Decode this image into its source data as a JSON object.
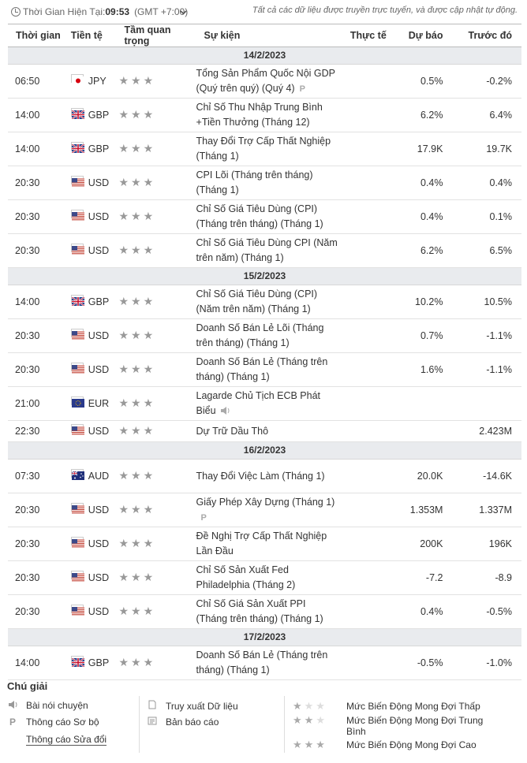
{
  "header": {
    "time_label": "Thời Gian Hiện Tại:",
    "time_value": "09:53",
    "timezone": "(GMT +7:00)",
    "notice": "Tất cả các dữ liệu được truyền trực tuyến, và được cập nhật tự động."
  },
  "columns": {
    "time": "Thời gian",
    "currency": "Tiền tệ",
    "importance": "Tầm quan trọng",
    "event": "Sự kiện",
    "actual": "Thực tế",
    "forecast": "Dự báo",
    "previous": "Trước đó"
  },
  "days": [
    {
      "date": "14/2/2023",
      "rows": [
        {
          "time": "06:50",
          "currency": "JPY",
          "flag": "jp",
          "event": "Tổng Sản Phẩm Quốc Nội GDP (Quý trên quý) (Quý 4)",
          "extra": "P",
          "actual": "",
          "forecast": "0.5%",
          "previous": "-0.2%"
        },
        {
          "time": "14:00",
          "currency": "GBP",
          "flag": "gb",
          "event": "Chỉ Số Thu Nhập Trung Bình +Tiền Thưởng (Tháng 12)",
          "extra": "",
          "actual": "",
          "forecast": "6.2%",
          "previous": "6.4%"
        },
        {
          "time": "14:00",
          "currency": "GBP",
          "flag": "gb",
          "event": "Thay Đổi Trợ Cấp Thất Nghiệp (Tháng 1)",
          "extra": "",
          "actual": "",
          "forecast": "17.9K",
          "previous": "19.7K"
        },
        {
          "time": "20:30",
          "currency": "USD",
          "flag": "us",
          "event": "CPI Lõi (Tháng trên tháng) (Tháng 1)",
          "extra": "",
          "actual": "",
          "forecast": "0.4%",
          "previous": "0.4%"
        },
        {
          "time": "20:30",
          "currency": "USD",
          "flag": "us",
          "event": "Chỉ Số Giá Tiêu Dùng (CPI) (Tháng trên tháng) (Tháng 1)",
          "extra": "",
          "actual": "",
          "forecast": "0.4%",
          "previous": "0.1%"
        },
        {
          "time": "20:30",
          "currency": "USD",
          "flag": "us",
          "event": "Chỉ Số Giá Tiêu Dùng CPI (Năm trên năm) (Tháng 1)",
          "extra": "",
          "actual": "",
          "forecast": "6.2%",
          "previous": "6.5%"
        }
      ]
    },
    {
      "date": "15/2/2023",
      "rows": [
        {
          "time": "14:00",
          "currency": "GBP",
          "flag": "gb",
          "event": "Chỉ Số Giá Tiêu Dùng (CPI) (Năm trên năm) (Tháng 1)",
          "extra": "",
          "actual": "",
          "forecast": "10.2%",
          "previous": "10.5%"
        },
        {
          "time": "20:30",
          "currency": "USD",
          "flag": "us",
          "event": "Doanh Số Bán Lẻ Lõi (Tháng trên tháng) (Tháng 1)",
          "extra": "",
          "actual": "",
          "forecast": "0.7%",
          "previous": "-1.1%"
        },
        {
          "time": "20:30",
          "currency": "USD",
          "flag": "us",
          "event": "Doanh Số Bán Lẻ (Tháng trên tháng) (Tháng 1)",
          "extra": "",
          "actual": "",
          "forecast": "1.6%",
          "previous": "-1.1%"
        },
        {
          "time": "21:00",
          "currency": "EUR",
          "flag": "eu",
          "event": "Lagarde Chủ Tịch ECB Phát Biểu",
          "extra": "speech",
          "actual": "",
          "forecast": "",
          "previous": ""
        },
        {
          "time": "22:30",
          "currency": "USD",
          "flag": "us",
          "event": "Dự Trữ Dầu Thô",
          "extra": "",
          "actual": "",
          "forecast": "",
          "previous": "2.423M"
        }
      ]
    },
    {
      "date": "16/2/2023",
      "rows": [
        {
          "time": "07:30",
          "currency": "AUD",
          "flag": "au",
          "event": "Thay Đổi Việc Làm (Tháng 1)",
          "extra": "",
          "actual": "",
          "forecast": "20.0K",
          "previous": "-14.6K"
        },
        {
          "time": "20:30",
          "currency": "USD",
          "flag": "us",
          "event": "Giấy Phép Xây Dựng (Tháng 1)",
          "extra": "P",
          "actual": "",
          "forecast": "1.353M",
          "previous": "1.337M"
        },
        {
          "time": "20:30",
          "currency": "USD",
          "flag": "us",
          "event": "Đề Nghị Trợ Cấp Thất Nghiệp Lần Đầu",
          "extra": "",
          "actual": "",
          "forecast": "200K",
          "previous": "196K"
        },
        {
          "time": "20:30",
          "currency": "USD",
          "flag": "us",
          "event": "Chỉ Số Sản Xuất Fed Philadelphia (Tháng 2)",
          "extra": "",
          "actual": "",
          "forecast": "-7.2",
          "previous": "-8.9"
        },
        {
          "time": "20:30",
          "currency": "USD",
          "flag": "us",
          "event": "Chỉ Số Giá Sản Xuất PPI (Tháng trên tháng) (Tháng 1)",
          "extra": "",
          "actual": "",
          "forecast": "0.4%",
          "previous": "-0.5%"
        }
      ]
    },
    {
      "date": "17/2/2023",
      "rows": [
        {
          "time": "14:00",
          "currency": "GBP",
          "flag": "gb",
          "event": "Doanh Số Bán Lẻ (Tháng trên tháng) (Tháng 1)",
          "extra": "",
          "actual": "",
          "forecast": "-0.5%",
          "previous": "-1.0%"
        }
      ]
    }
  ],
  "legend": {
    "title": "Chú giải",
    "speech": "Bài nói chuyện",
    "preliminary": "Thông cáo Sơ bộ",
    "revised": "Thông cáo Sửa đổi",
    "data_retrieval": "Truy xuất Dữ liệu",
    "report": "Bản báo cáo",
    "low": "Mức Biến Động Mong Đợi Thấp",
    "medium": "Mức Biến Động Mong Đợi Trung Bình",
    "high": "Mức Biến Động Mong Đợi Cao"
  },
  "icons": {
    "clock": "clock-icon",
    "speech": "speaker-icon",
    "preliminary": "p-icon",
    "data": "document-icon",
    "report": "report-icon",
    "star": "star-icon"
  }
}
